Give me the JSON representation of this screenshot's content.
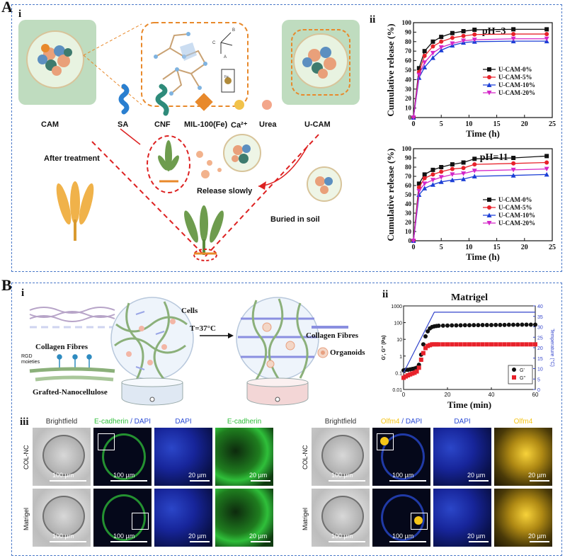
{
  "panelA": {
    "label": "A",
    "sub_i": "i",
    "sub_ii": "ii",
    "scheme": {
      "cam": "CAM",
      "ucam": "U-CAM",
      "components": [
        "SA",
        "CNF",
        "MIL-100(Fe)",
        "Ca²⁺",
        "Urea"
      ],
      "after_treatment": "After treatment",
      "release_slowly": "Release  slowly",
      "buried": "Buried in soil",
      "crystal_labels": [
        "B",
        "C",
        "A",
        "Fe"
      ]
    }
  },
  "panelB": {
    "label": "B",
    "sub_i": "i",
    "sub_ii": "ii",
    "sub_iii": "iii",
    "scheme": {
      "collagen": "Collagen Fibres",
      "rgd": "RGD moieties",
      "grafted": "Grafted-Nanocellulose",
      "cells": "Cells",
      "temp": "T=37°C",
      "collagen_right": "Collagen Fibres",
      "organoids": "Organoids"
    },
    "micro": {
      "left_cols": [
        "Brightfield",
        "E-cadherin",
        "/ DAPI",
        "DAPI",
        "E-cadherin"
      ],
      "right_cols": [
        "Brightfield",
        "Olfm4",
        "/ DAPI",
        "DAPI",
        "Olfm4"
      ],
      "rows": [
        "COL-NC",
        "Matrigel"
      ],
      "scale_100": "100 µm",
      "scale_20": "20 µm"
    }
  },
  "chart_data": [
    {
      "type": "line",
      "title": "pH=3",
      "xlabel": "Time (h)",
      "ylabel": "Cumulative release (%)",
      "xlim": [
        0,
        25
      ],
      "ylim": [
        0,
        100
      ],
      "xticks": [
        0,
        5,
        10,
        15,
        20,
        25
      ],
      "yticks": [
        0,
        10,
        20,
        30,
        40,
        50,
        60,
        70,
        80,
        90,
        100
      ],
      "x": [
        0,
        1,
        2,
        3.5,
        5,
        7,
        9,
        11,
        18,
        24
      ],
      "series": [
        {
          "name": "U-CAM-0%",
          "color": "#111111",
          "values": [
            0,
            52,
            70,
            80,
            85,
            89,
            91,
            92.5,
            93,
            93
          ]
        },
        {
          "name": "U-CAM-5%",
          "color": "#e8222b",
          "values": [
            0,
            48,
            65,
            75,
            80,
            84,
            86,
            87.5,
            88,
            88
          ]
        },
        {
          "name": "U-CAM-10%",
          "color": "#1c3fd6",
          "values": [
            0,
            42,
            53,
            63,
            71,
            76,
            79,
            80,
            80.5,
            80.5
          ]
        },
        {
          "name": "U-CAM-20%",
          "color": "#d426c8",
          "values": [
            0,
            45,
            58,
            68,
            74,
            78,
            81,
            82,
            83,
            83
          ]
        }
      ]
    },
    {
      "type": "line",
      "title": "pH=11",
      "xlabel": "Time (h)",
      "ylabel": "Cumulative release (%)",
      "xlim": [
        0,
        25
      ],
      "ylim": [
        0,
        100
      ],
      "xticks": [
        0,
        5,
        10,
        15,
        20,
        25
      ],
      "yticks": [
        0,
        10,
        20,
        30,
        40,
        50,
        60,
        70,
        80,
        90,
        100
      ],
      "x": [
        0,
        1,
        2,
        3.5,
        5,
        7,
        9,
        11,
        18,
        24
      ],
      "series": [
        {
          "name": "U-CAM-0%",
          "color": "#111111",
          "values": [
            0,
            62,
            72,
            77,
            80,
            83,
            85,
            89,
            90,
            92
          ]
        },
        {
          "name": "U-CAM-5%",
          "color": "#e8222b",
          "values": [
            0,
            58,
            68,
            72,
            75,
            78,
            79,
            83,
            84,
            85
          ]
        },
        {
          "name": "U-CAM-10%",
          "color": "#1c3fd6",
          "values": [
            0,
            50,
            57,
            61,
            64,
            66,
            67,
            70,
            71,
            72
          ]
        },
        {
          "name": "U-CAM-20%",
          "color": "#d426c8",
          "values": [
            0,
            54,
            62,
            66,
            69,
            72,
            73,
            76,
            77,
            78
          ]
        }
      ]
    },
    {
      "type": "scatter",
      "title": "Matrigel",
      "xlabel": "Time (min)",
      "ylabel": "G', G'' (Pa)",
      "y2label": "Temperature (°C)",
      "xlim": [
        0,
        60
      ],
      "ylim": [
        0.01,
        1000
      ],
      "yscale": "log",
      "y2lim": [
        0,
        40
      ],
      "xticks": [
        0,
        20,
        40,
        60
      ],
      "yticks": [
        0.01,
        0.1,
        1,
        10,
        100,
        1000
      ],
      "y2ticks": [
        0,
        5,
        10,
        15,
        20,
        25,
        30,
        35,
        40
      ],
      "series": [
        {
          "name": "G'",
          "color": "#111111",
          "marker": "circle",
          "x": [
            0,
            1,
            2,
            3,
            4,
            5,
            6,
            7,
            8,
            9,
            10,
            11,
            12,
            13,
            14,
            15,
            16,
            18,
            20,
            22,
            24,
            26,
            28,
            30,
            32,
            34,
            36,
            38,
            40,
            42,
            44,
            46,
            48,
            50,
            52,
            54,
            56,
            58,
            60
          ],
          "y": [
            0.14,
            0.15,
            0.15,
            0.16,
            0.17,
            0.18,
            0.2,
            0.3,
            1.2,
            5,
            15,
            30,
            45,
            55,
            60,
            63,
            65,
            66,
            67,
            68,
            68,
            69,
            70,
            70,
            71,
            71,
            72,
            72,
            72,
            73,
            73,
            73,
            74,
            74,
            74,
            75,
            75,
            75,
            75
          ]
        },
        {
          "name": "G''",
          "color": "#e8222b",
          "marker": "square",
          "x": [
            0,
            1,
            2,
            3,
            4,
            5,
            6,
            7,
            8,
            9,
            10,
            11,
            12,
            13,
            14,
            15,
            16,
            18,
            20,
            22,
            24,
            26,
            28,
            30,
            32,
            34,
            36,
            38,
            40,
            42,
            44,
            46,
            48,
            50,
            52,
            54,
            56,
            58,
            60
          ],
          "y": [
            0.05,
            0.06,
            0.07,
            0.08,
            0.09,
            0.1,
            0.12,
            0.2,
            0.6,
            1.5,
            3,
            4,
            4.5,
            5,
            5,
            5,
            5,
            5,
            5,
            5,
            5,
            5,
            5,
            5,
            5,
            5,
            5,
            5,
            5,
            5,
            5,
            5,
            5,
            5,
            5,
            5,
            5,
            5,
            5
          ]
        },
        {
          "name": "Temperature",
          "color": "#3344cc",
          "marker": "line",
          "x": [
            0,
            14,
            60
          ],
          "y2": [
            8,
            37,
            37
          ]
        }
      ]
    }
  ]
}
